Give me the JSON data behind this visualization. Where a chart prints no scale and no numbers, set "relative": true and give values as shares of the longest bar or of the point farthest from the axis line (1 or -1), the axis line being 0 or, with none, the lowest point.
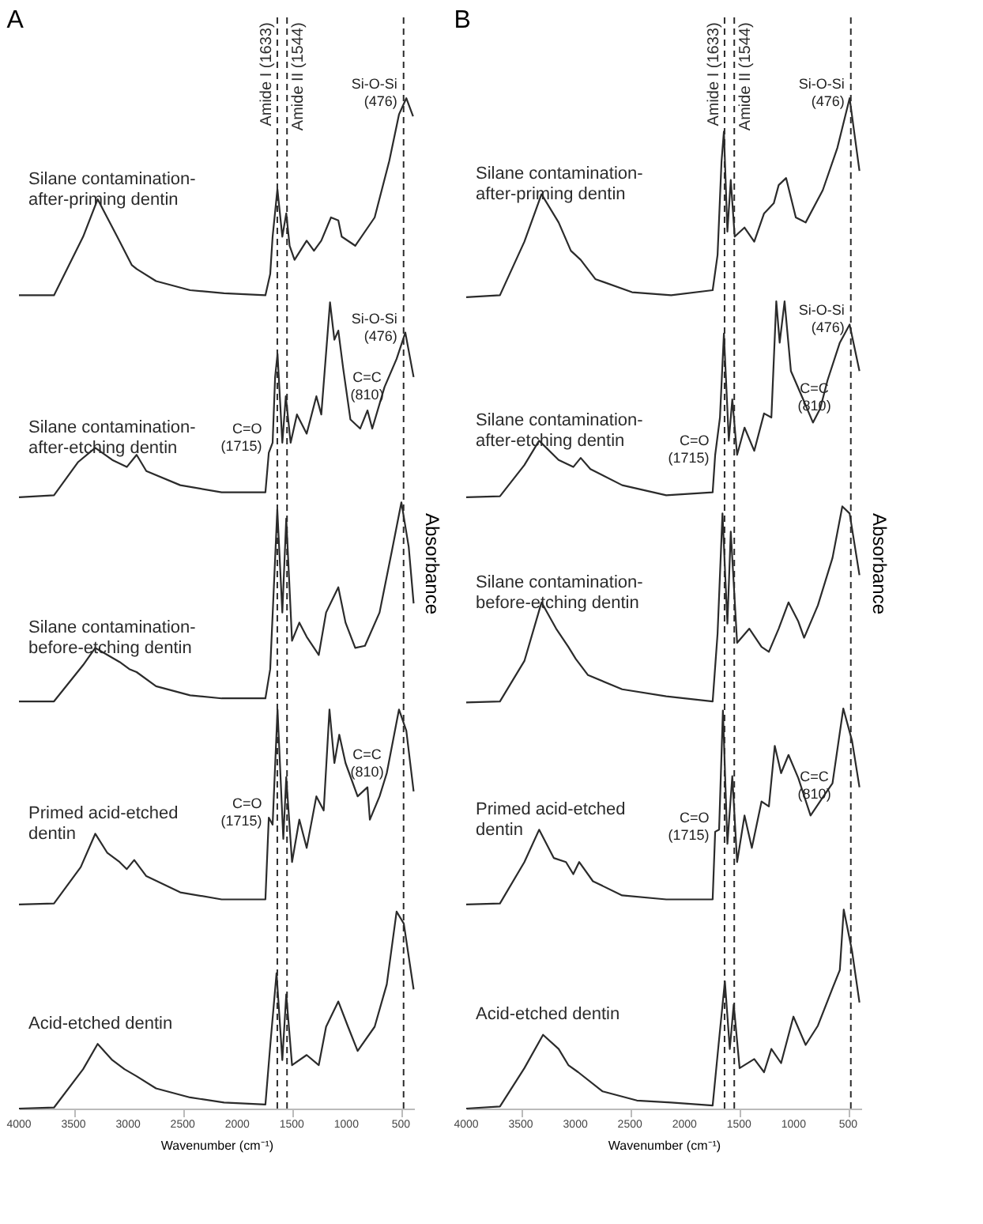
{
  "chart_data": [
    {
      "type": "line",
      "title": "A",
      "xlabel": "Wavenumber (cm⁻¹)",
      "ylabel": "Absorbance",
      "relative": true,
      "xlim": [
        4000,
        380
      ],
      "xticks": [
        4000,
        3500,
        3000,
        2500,
        2000,
        1500,
        1000,
        500
      ],
      "tick_labels": "x",
      "legend": false,
      "grid": false,
      "marker": "none",
      "line_style": "solid",
      "series": [
        {
          "name": "Silane contamination-after-priming dentin",
          "color": "#2b2b2b",
          "x": [
            4000,
            3679,
            3412,
            3279,
            3100,
            2967,
            2922,
            2744,
            2432,
            2121,
            1742,
            1698,
            1676,
            1632,
            1587,
            1551,
            1520,
            1475,
            1364,
            1297,
            1230,
            1141,
            1074,
            1043,
            919,
            741,
            607,
            518,
            451,
            389
          ],
          "values": [
            0.805,
            0.805,
            0.863,
            0.9,
            0.863,
            0.835,
            0.831,
            0.819,
            0.81,
            0.807,
            0.805,
            0.826,
            0.863,
            0.91,
            0.863,
            0.886,
            0.854,
            0.84,
            0.859,
            0.849,
            0.859,
            0.882,
            0.879,
            0.863,
            0.854,
            0.882,
            0.938,
            0.984,
            1.0,
            0.982
          ]
        },
        {
          "name": "Silane contamination-after-etching dentin",
          "color": "#2b2b2b",
          "x": [
            4000,
            3679,
            3457,
            3301,
            3145,
            3012,
            2922,
            2833,
            2522,
            2143,
            1742,
            1711,
            1676,
            1653,
            1631,
            1587,
            1555,
            1511,
            1453,
            1364,
            1275,
            1230,
            1150,
            1110,
            1074,
            1030,
            963,
            874,
            807,
            763,
            651,
            540,
            460,
            384
          ],
          "values": [
            0.605,
            0.607,
            0.64,
            0.654,
            0.642,
            0.635,
            0.647,
            0.631,
            0.617,
            0.61,
            0.61,
            0.649,
            0.659,
            0.724,
            0.747,
            0.659,
            0.705,
            0.659,
            0.687,
            0.668,
            0.705,
            0.687,
            0.798,
            0.761,
            0.77,
            0.733,
            0.682,
            0.673,
            0.691,
            0.673,
            0.714,
            0.742,
            0.768,
            0.724
          ]
        },
        {
          "name": "Silane contamination-before-etching dentin",
          "color": "#2b2b2b",
          "x": [
            4000,
            3679,
            3412,
            3301,
            3190,
            3078,
            2989,
            2922,
            2744,
            2432,
            2143,
            1742,
            1698,
            1633,
            1587,
            1551,
            1498,
            1431,
            1364,
            1253,
            1186,
            1074,
            1008,
            919,
            830,
            696,
            585,
            496,
            429,
            384
          ],
          "values": [
            0.403,
            0.403,
            0.439,
            0.456,
            0.449,
            0.442,
            0.435,
            0.432,
            0.418,
            0.409,
            0.406,
            0.406,
            0.435,
            0.593,
            0.491,
            0.584,
            0.463,
            0.481,
            0.467,
            0.449,
            0.491,
            0.516,
            0.481,
            0.456,
            0.458,
            0.491,
            0.551,
            0.6,
            0.556,
            0.5
          ]
        },
        {
          "name": "Primed acid-etched dentin",
          "color": "#2b2b2b",
          "x": [
            4000,
            3679,
            3434,
            3301,
            3190,
            3078,
            3012,
            2944,
            2833,
            2522,
            2143,
            1742,
            1711,
            1676,
            1631,
            1578,
            1551,
            1498,
            1431,
            1364,
            1275,
            1208,
            1155,
            1110,
            1065,
            1008,
            897,
            807,
            785,
            696,
            630,
            518,
            451,
            384
          ],
          "values": [
            0.202,
            0.203,
            0.239,
            0.272,
            0.253,
            0.244,
            0.237,
            0.246,
            0.23,
            0.214,
            0.207,
            0.207,
            0.288,
            0.281,
            0.395,
            0.267,
            0.328,
            0.244,
            0.286,
            0.258,
            0.309,
            0.295,
            0.395,
            0.342,
            0.37,
            0.342,
            0.309,
            0.318,
            0.286,
            0.309,
            0.332,
            0.395,
            0.374,
            0.314
          ]
        },
        {
          "name": "Acid-etched dentin",
          "color": "#2b2b2b",
          "x": [
            4000,
            3679,
            3412,
            3279,
            3145,
            3034,
            2922,
            2744,
            2432,
            2121,
            1742,
            1698,
            1640,
            1587,
            1551,
            1498,
            1364,
            1253,
            1186,
            1074,
            985,
            897,
            741,
            630,
            540,
            474,
            384
          ],
          "values": [
            0,
            0.001,
            0.039,
            0.064,
            0.048,
            0.039,
            0.032,
            0.02,
            0.011,
            0.006,
            0.004,
            0.062,
            0.134,
            0.048,
            0.113,
            0.043,
            0.053,
            0.043,
            0.081,
            0.106,
            0.081,
            0.057,
            0.081,
            0.123,
            0.195,
            0.183,
            0.118
          ]
        }
      ],
      "ref_lines": [
        {
          "axis": "x",
          "value": 1633,
          "label": "Amide I (1633)",
          "line_style": "dashed",
          "color": "#2b2b2b"
        },
        {
          "axis": "x",
          "value": 1544,
          "label": "Amide II (1544)",
          "line_style": "dashed",
          "color": "#2b2b2b"
        },
        {
          "axis": "x",
          "value": 476,
          "line_style": "dashed",
          "color": "#2b2b2b"
        }
      ],
      "annotations": [
        {
          "text": "Si-O-Si (476)",
          "x": 476,
          "y": 1.0
        },
        {
          "text": "Si-O-Si (476)",
          "x": 476,
          "y": 0.768
        },
        {
          "text": "C=O (1715)",
          "x": 1715,
          "y": 0.659
        },
        {
          "text": "C=C (810)",
          "x": 810,
          "y": 0.691
        },
        {
          "text": "C=O (1715)",
          "x": 1715,
          "y": 0.288
        },
        {
          "text": "C=C (810)",
          "x": 810,
          "y": 0.318
        }
      ]
    },
    {
      "type": "line",
      "title": "B",
      "xlabel": "Wavenumber (cm⁻¹)",
      "ylabel": "Absorbance",
      "relative": true,
      "xlim": [
        4000,
        380
      ],
      "xticks": [
        4000,
        3500,
        3000,
        2500,
        2000,
        1500,
        1000,
        500
      ],
      "tick_labels": "x",
      "legend": false,
      "grid": false,
      "marker": "none",
      "line_style": "solid",
      "series": [
        {
          "name": "Silane contamination-after-priming dentin",
          "color": "#2b2b2b",
          "x": [
            4000,
            3691,
            3467,
            3310,
            3153,
            3041,
            2951,
            2817,
            2481,
            2122,
            1742,
            1697,
            1661,
            1639,
            1607,
            1576,
            1540,
            1450,
            1361,
            1271,
            1182,
            1137,
            1069,
            980,
            890,
            733,
            599,
            487,
            397
          ],
          "values": [
            0.803,
            0.805,
            0.858,
            0.905,
            0.877,
            0.849,
            0.84,
            0.821,
            0.808,
            0.805,
            0.81,
            0.845,
            0.937,
            0.967,
            0.868,
            0.919,
            0.863,
            0.872,
            0.858,
            0.886,
            0.896,
            0.914,
            0.921,
            0.882,
            0.877,
            0.909,
            0.951,
            1.0,
            0.928
          ]
        },
        {
          "name": "Silane contamination-after-etching dentin",
          "color": "#2b2b2b",
          "x": [
            4000,
            3691,
            3467,
            3332,
            3153,
            3019,
            2951,
            2862,
            2571,
            2167,
            1742,
            1719,
            1675,
            1639,
            1594,
            1562,
            1518,
            1450,
            1361,
            1271,
            1204,
            1159,
            1128,
            1083,
            1025,
            913,
            823,
            756,
            689,
            577,
            487,
            397
          ],
          "values": [
            0.605,
            0.606,
            0.637,
            0.661,
            0.642,
            0.635,
            0.644,
            0.633,
            0.617,
            0.607,
            0.61,
            0.647,
            0.684,
            0.767,
            0.661,
            0.702,
            0.647,
            0.674,
            0.651,
            0.688,
            0.684,
            0.799,
            0.758,
            0.799,
            0.73,
            0.702,
            0.679,
            0.693,
            0.721,
            0.758,
            0.776,
            0.73
          ]
        },
        {
          "name": "Silane contamination-before-etching dentin",
          "color": "#2b2b2b",
          "x": [
            4000,
            3691,
            3467,
            3310,
            3176,
            3064,
            2996,
            2884,
            2571,
            2167,
            1742,
            1697,
            1652,
            1607,
            1576,
            1518,
            1406,
            1294,
            1227,
            1137,
            1047,
            957,
            904,
            778,
            644,
            554,
            487,
            397
          ],
          "values": [
            0.402,
            0.403,
            0.443,
            0.501,
            0.475,
            0.457,
            0.445,
            0.429,
            0.415,
            0.408,
            0.403,
            0.47,
            0.589,
            0.48,
            0.571,
            0.461,
            0.475,
            0.457,
            0.452,
            0.475,
            0.501,
            0.482,
            0.466,
            0.498,
            0.545,
            0.596,
            0.589,
            0.528
          ]
        },
        {
          "name": "Primed acid-etched dentin",
          "color": "#2b2b2b",
          "x": [
            4000,
            3691,
            3467,
            3332,
            3198,
            3086,
            3019,
            2965,
            2839,
            2571,
            2167,
            1742,
            1719,
            1683,
            1648,
            1607,
            1562,
            1518,
            1450,
            1383,
            1294,
            1227,
            1173,
            1115,
            1047,
            957,
            845,
            733,
            644,
            545,
            465,
            397
          ],
          "values": [
            0.202,
            0.203,
            0.244,
            0.276,
            0.248,
            0.244,
            0.232,
            0.244,
            0.225,
            0.211,
            0.207,
            0.207,
            0.274,
            0.276,
            0.394,
            0.262,
            0.329,
            0.244,
            0.29,
            0.258,
            0.304,
            0.299,
            0.359,
            0.332,
            0.35,
            0.327,
            0.29,
            0.308,
            0.322,
            0.396,
            0.364,
            0.318
          ]
        },
        {
          "name": "Acid-etched dentin",
          "color": "#2b2b2b",
          "x": [
            4000,
            3691,
            3467,
            3296,
            3153,
            3064,
            2974,
            2750,
            2436,
            2122,
            1742,
            1688,
            1630,
            1585,
            1549,
            1495,
            1361,
            1271,
            1204,
            1115,
            1002,
            890,
            778,
            644,
            577,
            541,
            465,
            397
          ],
          "values": [
            0,
            0.002,
            0.04,
            0.073,
            0.059,
            0.043,
            0.036,
            0.017,
            0.008,
            0.006,
            0.003,
            0.063,
            0.126,
            0.059,
            0.103,
            0.04,
            0.049,
            0.036,
            0.059,
            0.045,
            0.091,
            0.063,
            0.082,
            0.119,
            0.137,
            0.197,
            0.156,
            0.105
          ]
        }
      ],
      "ref_lines": [
        {
          "axis": "x",
          "value": 1633,
          "label": "Amide I (1633)",
          "line_style": "dashed",
          "color": "#2b2b2b"
        },
        {
          "axis": "x",
          "value": 1544,
          "label": "Amide II (1544)",
          "line_style": "dashed",
          "color": "#2b2b2b"
        },
        {
          "axis": "x",
          "value": 476,
          "line_style": "dashed",
          "color": "#2b2b2b"
        }
      ],
      "annotations": [
        {
          "text": "Si-O-Si (476)",
          "x": 476,
          "y": 1.0
        },
        {
          "text": "Si-O-Si (476)",
          "x": 476,
          "y": 0.776
        },
        {
          "text": "C=O (1715)",
          "x": 1715,
          "y": 0.647
        },
        {
          "text": "C=C (810)",
          "x": 810,
          "y": 0.68
        },
        {
          "text": "C=O (1715)",
          "x": 1715,
          "y": 0.274
        },
        {
          "text": "C=C (810)",
          "x": 810,
          "y": 0.296
        }
      ]
    }
  ]
}
